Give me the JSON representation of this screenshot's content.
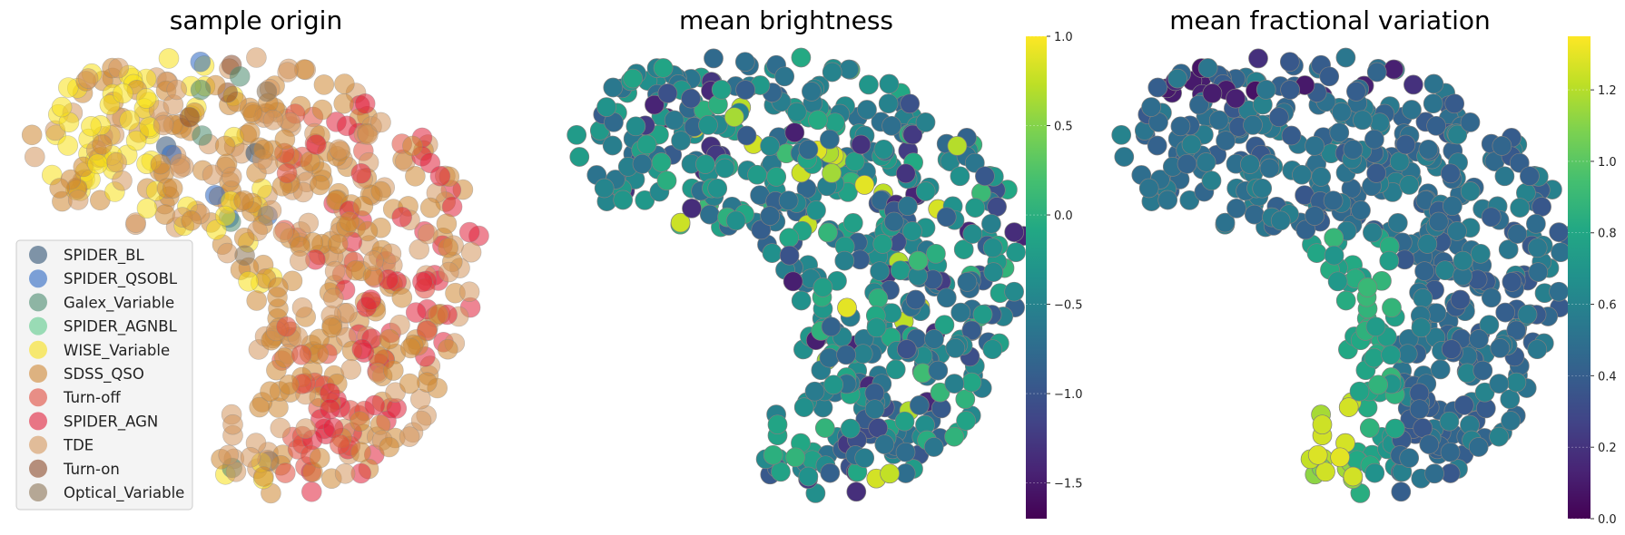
{
  "figure": {
    "titles": [
      "sample origin",
      "mean brightness",
      "mean fractional variation"
    ]
  },
  "chart_data": [
    {
      "type": "scatter",
      "title": "sample origin",
      "xlabel": "",
      "ylabel": "",
      "axes_visible": false,
      "legend": {
        "placement": "lower-left",
        "entries": [
          {
            "label": "SPIDER_BL",
            "color": "#2f5173"
          },
          {
            "label": "SPIDER_QSOBL",
            "color": "#2a66c2"
          },
          {
            "label": "Galex_Variable",
            "color": "#4a8a6e"
          },
          {
            "label": "SPIDER_AGNBL",
            "color": "#5cc98a"
          },
          {
            "label": "WISE_Variable",
            "color": "#f7e017"
          },
          {
            "label": "SDSS_QSO",
            "color": "#cd8632"
          },
          {
            "label": "Turn-off",
            "color": "#e04a3c"
          },
          {
            "label": "SPIDER_AGN",
            "color": "#e0203a"
          },
          {
            "label": "TDE",
            "color": "#d3965c"
          },
          {
            "label": "Turn-on",
            "color": "#8a4a2a"
          },
          {
            "label": "Optical_Variable",
            "color": "#8a7355"
          }
        ]
      },
      "note_points": "Dense cloud of ~1500 overlapping semi-transparent markers in a hook-shaped embedding; WISE_Variable concentrated on the left lobe, SPIDER_AGN/Turn-off on the right lobe, SDSS_QSO/TDE throughout."
    },
    {
      "type": "scatter",
      "title": "mean brightness",
      "axes_visible": false,
      "colormap": "viridis",
      "colorbar": {
        "range": [
          -1.7,
          1.0
        ],
        "ticks": [
          1.0,
          0.5,
          0.0,
          -0.5,
          -1.0,
          -1.5
        ],
        "tick_labels": [
          "1.0",
          "0.5",
          "0.0",
          "−0.5",
          "−1.0",
          "−1.5"
        ]
      }
    },
    {
      "type": "scatter",
      "title": "mean fractional variation",
      "axes_visible": false,
      "colormap": "viridis",
      "colorbar": {
        "range": [
          0.0,
          1.35
        ],
        "ticks": [
          1.2,
          1.0,
          0.8,
          0.6,
          0.4,
          0.2,
          0.0
        ],
        "tick_labels": [
          "1.2",
          "1.0",
          "0.8",
          "0.6",
          "0.4",
          "0.2",
          "0.0"
        ]
      }
    }
  ],
  "colors": {
    "legend_bg": "#f2f2f2",
    "legend_border": "#cccccc",
    "marker_edge": "#7f7f7f"
  }
}
